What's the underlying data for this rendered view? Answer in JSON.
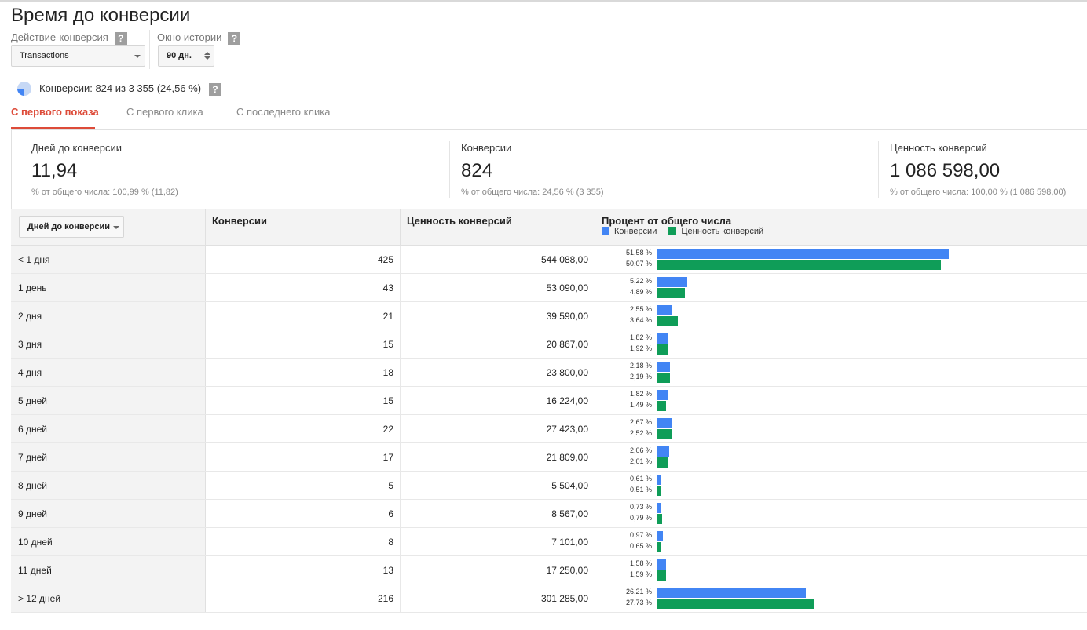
{
  "page": {
    "title": "Время до конверсии"
  },
  "controls": {
    "action_label": "Действие-конверсия",
    "action_value": "Transactions",
    "history_label": "Окно истории",
    "history_value": "90 дн.",
    "help_glyph": "?"
  },
  "conversions_summary": "Конверсии: 824 из 3 355 (24,56 %)",
  "tabs": [
    {
      "label": "С первого показа",
      "active": true
    },
    {
      "label": "С первого клика",
      "active": false
    },
    {
      "label": "С последнего клика",
      "active": false
    }
  ],
  "metrics": [
    {
      "label": "Дней до конверсии",
      "value": "11,94",
      "sub": "% от общего числа: 100,99 % (11,82)"
    },
    {
      "label": "Конверсии",
      "value": "824",
      "sub": "% от общего числа: 24,56 % (3 355)"
    },
    {
      "label": "Ценность конверсий",
      "value": "1 086 598,00",
      "sub": "% от общего числа: 100,00 % (1 086 598,00)"
    }
  ],
  "table": {
    "dimension_button": "Дней до конверсии",
    "headers": {
      "conversions": "Конверсии",
      "value": "Ценность конверсий",
      "percent": "Процент от общего числа"
    },
    "legend": {
      "conversions": "Конверсии",
      "value": "Ценность конверсий"
    },
    "colors": {
      "conversions": "#4285f4",
      "value": "#0f9d58",
      "accent": "#dd4b39"
    },
    "rows": [
      {
        "label": "< 1 дня",
        "conversions": "425",
        "value": "544 088,00",
        "pct_conv": "51,58 %",
        "pct_value": "50,07 %",
        "conv_share": 51.58,
        "value_share": 50.07
      },
      {
        "label": "1 день",
        "conversions": "43",
        "value": "53 090,00",
        "pct_conv": "5,22 %",
        "pct_value": "4,89 %",
        "conv_share": 5.22,
        "value_share": 4.89
      },
      {
        "label": "2 дня",
        "conversions": "21",
        "value": "39 590,00",
        "pct_conv": "2,55 %",
        "pct_value": "3,64 %",
        "conv_share": 2.55,
        "value_share": 3.64
      },
      {
        "label": "3 дня",
        "conversions": "15",
        "value": "20 867,00",
        "pct_conv": "1,82 %",
        "pct_value": "1,92 %",
        "conv_share": 1.82,
        "value_share": 1.92
      },
      {
        "label": "4 дня",
        "conversions": "18",
        "value": "23 800,00",
        "pct_conv": "2,18 %",
        "pct_value": "2,19 %",
        "conv_share": 2.18,
        "value_share": 2.19
      },
      {
        "label": "5 дней",
        "conversions": "15",
        "value": "16 224,00",
        "pct_conv": "1,82 %",
        "pct_value": "1,49 %",
        "conv_share": 1.82,
        "value_share": 1.49
      },
      {
        "label": "6 дней",
        "conversions": "22",
        "value": "27 423,00",
        "pct_conv": "2,67 %",
        "pct_value": "2,52 %",
        "conv_share": 2.67,
        "value_share": 2.52
      },
      {
        "label": "7 дней",
        "conversions": "17",
        "value": "21 809,00",
        "pct_conv": "2,06 %",
        "pct_value": "2,01 %",
        "conv_share": 2.06,
        "value_share": 2.01
      },
      {
        "label": "8 дней",
        "conversions": "5",
        "value": "5 504,00",
        "pct_conv": "0,61 %",
        "pct_value": "0,51 %",
        "conv_share": 0.61,
        "value_share": 0.51
      },
      {
        "label": "9 дней",
        "conversions": "6",
        "value": "8 567,00",
        "pct_conv": "0,73 %",
        "pct_value": "0,79 %",
        "conv_share": 0.73,
        "value_share": 0.79
      },
      {
        "label": "10 дней",
        "conversions": "8",
        "value": "7 101,00",
        "pct_conv": "0,97 %",
        "pct_value": "0,65 %",
        "conv_share": 0.97,
        "value_share": 0.65
      },
      {
        "label": "11 дней",
        "conversions": "13",
        "value": "17 250,00",
        "pct_conv": "1,58 %",
        "pct_value": "1,59 %",
        "conv_share": 1.58,
        "value_share": 1.59
      },
      {
        "label": "> 12 дней",
        "conversions": "216",
        "value": "301 285,00",
        "pct_conv": "26,21 %",
        "pct_value": "27,73 %",
        "conv_share": 26.21,
        "value_share": 27.73
      }
    ]
  }
}
